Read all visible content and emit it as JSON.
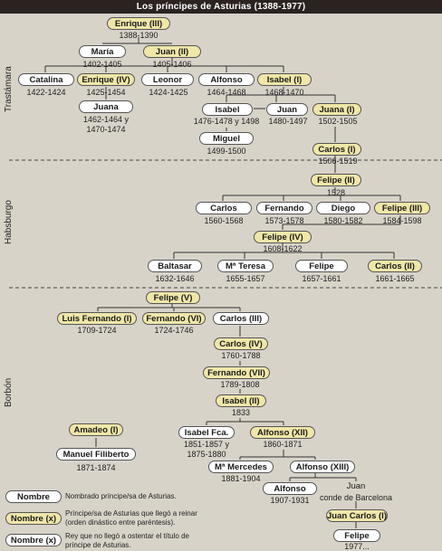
{
  "title": "Los príncipes de Asturias (1388-1977)",
  "dynasties": {
    "trastamara": "Trastámara",
    "habsburgo": "Habsburgo",
    "borbon": "Borbón"
  },
  "people": {
    "enrique_iii": {
      "name": "Enrique (III)",
      "dates": "1388-1390"
    },
    "maria": {
      "name": "María",
      "dates": "1402-1405"
    },
    "juan_ii": {
      "name": "Juan (II)",
      "dates": "1405-1406"
    },
    "catalina": {
      "name": "Catalina",
      "dates": "1422-1424"
    },
    "enrique_iv": {
      "name": "Enrique (IV)",
      "dates": "1425-1454"
    },
    "leonor": {
      "name": "Leonor",
      "dates": "1424-1425"
    },
    "alfonso_t": {
      "name": "Alfonso",
      "dates": "1464-1468"
    },
    "isabel_i": {
      "name": "Isabel (I)",
      "dates": "1468-1470"
    },
    "juana_t": {
      "name": "Juana",
      "dates1": "1462-1464 y",
      "dates2": "1470-1474"
    },
    "isabel_t": {
      "name": "Isabel",
      "dates": "1476-1478 y 1498"
    },
    "juan_t": {
      "name": "Juan",
      "dates": "1480-1497"
    },
    "juana_i": {
      "name": "Juana (I)",
      "dates": "1502-1505"
    },
    "miguel": {
      "name": "Miguel",
      "dates": "1499-1500"
    },
    "carlos_i": {
      "name": "Carlos (I)",
      "dates": "1506-1519"
    },
    "felipe_ii": {
      "name": "Felipe (II)",
      "dates": "1528"
    },
    "carlos_h": {
      "name": "Carlos",
      "dates": "1560-1568"
    },
    "fernando_h": {
      "name": "Fernando",
      "dates": "1573-1578"
    },
    "diego": {
      "name": "Diego",
      "dates": "1580-1582"
    },
    "felipe_iii": {
      "name": "Felipe (III)",
      "dates": "1584-1598"
    },
    "felipe_iv": {
      "name": "Felipe (IV)",
      "dates": "1608-1622"
    },
    "baltasar": {
      "name": "Baltasar",
      "dates": "1632-1646"
    },
    "ma_teresa": {
      "name": "Mª Teresa",
      "dates": "1655-1657"
    },
    "felipe_h": {
      "name": "Felipe",
      "dates": "1657-1661"
    },
    "carlos_ii": {
      "name": "Carlos (II)",
      "dates": "1661-1665"
    },
    "felipe_v": {
      "name": "Felipe (V)"
    },
    "luis_fernando_i": {
      "name": "Luis Fernando (I)",
      "dates": "1709-1724"
    },
    "fernando_vi": {
      "name": "Fernando (VI)",
      "dates": "1724-1746"
    },
    "carlos_iii": {
      "name": "Carlos (III)"
    },
    "carlos_iv": {
      "name": "Carlos (IV)",
      "dates": "1760-1788"
    },
    "fernando_vii": {
      "name": "Fernando (VII)",
      "dates": "1789-1808"
    },
    "isabel_ii": {
      "name": "Isabel (II)",
      "dates": "1833"
    },
    "amadeo_i": {
      "name": "Amadeo (I)"
    },
    "manuel_filiberto": {
      "name": "Manuel Filiberto",
      "dates": "1871-1874"
    },
    "isabel_fca": {
      "name": "Isabel Fca.",
      "dates1": "1851-1857 y",
      "dates2": "1875-1880"
    },
    "alfonso_xii": {
      "name": "Alfonso (XII)",
      "dates": "1860-1871"
    },
    "ma_mercedes": {
      "name": "Mª Mercedes",
      "dates": "1881-1904"
    },
    "alfonso_xiii": {
      "name": "Alfonso (XIII)"
    },
    "alfonso_b": {
      "name": "Alfonso",
      "dates": "1907-1931"
    },
    "juan_b": {
      "name": "Juan",
      "dates": "conde de Barcelona"
    },
    "juan_carlos_i": {
      "name": "Juan Carlos (I)"
    },
    "felipe_b": {
      "name": "Felipe",
      "dates": "1977..."
    }
  },
  "legend": {
    "prince_box": "Nombre",
    "prince_text": "Nombrado príncipe/sa de Asturias.",
    "reigned_box": "Nombre (x)",
    "reigned_text": "Príncipe/sa de Asturias que llegó a reinar (orden dinástico entre paréntesis).",
    "notreign_box": "Nombre (x)",
    "notreign_text": "Rey que no llegó a ostentar el título de príncipe de Asturias."
  },
  "colors": {
    "background": "#d8d3c9",
    "reigned": "#efe7a8",
    "prince": "#ffffff",
    "title_bar": "#2b2320"
  }
}
